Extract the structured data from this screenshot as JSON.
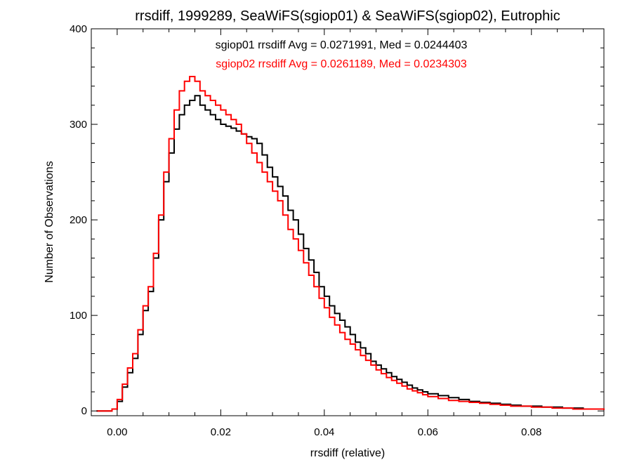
{
  "chart_data": {
    "type": "line",
    "title": "rrsdiff, 1999289, SeaWiFS(sgiop01) & SeaWiFS(sgiop02), Eutrophic",
    "xlabel": "rrsdiff (relative)",
    "ylabel": "Number of Observations",
    "xlim": [
      -0.005,
      0.094
    ],
    "ylim": [
      -5,
      400
    ],
    "xticks": [
      "0.00",
      "0.02",
      "0.04",
      "0.06",
      "0.08"
    ],
    "xtick_values": [
      0.0,
      0.02,
      0.04,
      0.06,
      0.08
    ],
    "yticks": [
      "0",
      "100",
      "200",
      "300",
      "400"
    ],
    "ytick_values": [
      0,
      100,
      200,
      300,
      400
    ],
    "grid": false,
    "annotations": [
      "sgiop01 rrsdiff Avg = 0.0271991, Med = 0.0244403",
      "sgiop02 rrsdiff Avg = 0.0261189, Med = 0.0234303"
    ],
    "series": [
      {
        "color": "#000000",
        "x": [
          -0.004,
          -0.002,
          -0.001,
          0.0,
          0.001,
          0.002,
          0.003,
          0.004,
          0.005,
          0.006,
          0.007,
          0.008,
          0.009,
          0.01,
          0.011,
          0.012,
          0.013,
          0.014,
          0.015,
          0.016,
          0.017,
          0.018,
          0.019,
          0.02,
          0.021,
          0.022,
          0.023,
          0.024,
          0.025,
          0.026,
          0.027,
          0.028,
          0.029,
          0.03,
          0.031,
          0.032,
          0.033,
          0.034,
          0.035,
          0.036,
          0.037,
          0.038,
          0.039,
          0.04,
          0.041,
          0.042,
          0.043,
          0.044,
          0.045,
          0.046,
          0.047,
          0.048,
          0.049,
          0.05,
          0.051,
          0.052,
          0.053,
          0.054,
          0.055,
          0.056,
          0.057,
          0.058,
          0.059,
          0.06,
          0.062,
          0.064,
          0.066,
          0.068,
          0.07,
          0.072,
          0.074,
          0.076,
          0.078,
          0.08,
          0.082,
          0.084,
          0.086,
          0.088,
          0.09,
          0.094
        ],
        "values": [
          0,
          0,
          2,
          10,
          25,
          40,
          55,
          80,
          105,
          125,
          160,
          200,
          240,
          270,
          295,
          310,
          320,
          325,
          330,
          320,
          315,
          310,
          305,
          300,
          298,
          296,
          293,
          290,
          287,
          285,
          280,
          268,
          255,
          245,
          235,
          225,
          210,
          200,
          185,
          170,
          158,
          145,
          130,
          120,
          110,
          102,
          95,
          88,
          80,
          72,
          66,
          60,
          52,
          48,
          44,
          40,
          36,
          33,
          30,
          27,
          24,
          22,
          20,
          18,
          16,
          14,
          12,
          10,
          9,
          8,
          7,
          6,
          5,
          5,
          4,
          4,
          3,
          3,
          2,
          1
        ]
      },
      {
        "color": "#ff0000",
        "x": [
          -0.004,
          -0.002,
          -0.001,
          0.0,
          0.001,
          0.002,
          0.003,
          0.004,
          0.005,
          0.006,
          0.007,
          0.008,
          0.009,
          0.01,
          0.011,
          0.012,
          0.013,
          0.014,
          0.015,
          0.016,
          0.017,
          0.018,
          0.019,
          0.02,
          0.021,
          0.022,
          0.023,
          0.024,
          0.025,
          0.026,
          0.027,
          0.028,
          0.029,
          0.03,
          0.031,
          0.032,
          0.033,
          0.034,
          0.035,
          0.036,
          0.037,
          0.038,
          0.039,
          0.04,
          0.041,
          0.042,
          0.043,
          0.044,
          0.045,
          0.046,
          0.047,
          0.048,
          0.049,
          0.05,
          0.051,
          0.052,
          0.053,
          0.054,
          0.055,
          0.056,
          0.057,
          0.058,
          0.059,
          0.06,
          0.062,
          0.064,
          0.066,
          0.068,
          0.07,
          0.072,
          0.074,
          0.076,
          0.078,
          0.08,
          0.082,
          0.084,
          0.086,
          0.088,
          0.09,
          0.094
        ],
        "values": [
          0,
          0,
          2,
          12,
          28,
          45,
          60,
          85,
          110,
          130,
          165,
          205,
          250,
          285,
          315,
          335,
          345,
          350,
          345,
          335,
          330,
          325,
          320,
          315,
          310,
          305,
          300,
          290,
          280,
          270,
          260,
          250,
          240,
          230,
          220,
          205,
          190,
          180,
          168,
          155,
          142,
          130,
          118,
          108,
          98,
          90,
          82,
          75,
          70,
          64,
          58,
          53,
          48,
          43,
          39,
          35,
          32,
          29,
          26,
          23,
          21,
          19,
          17,
          15,
          13,
          11,
          10,
          9,
          8,
          7,
          6,
          5,
          5,
          4,
          4,
          3,
          3,
          2,
          2,
          1
        ]
      }
    ]
  }
}
